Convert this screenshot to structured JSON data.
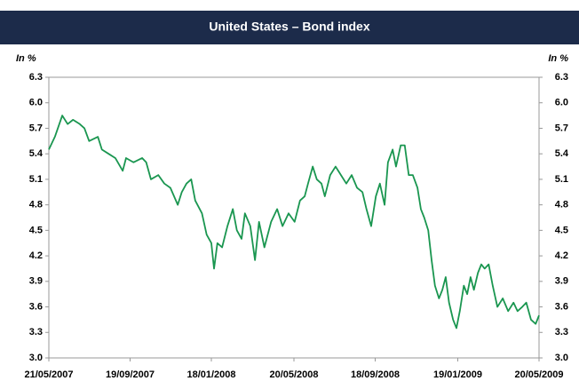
{
  "chart_data": {
    "type": "line",
    "title": "United States – Bond index",
    "y_label": "In %",
    "y2_label": "In %",
    "xlim": [
      "2007-05-21",
      "2009-05-20"
    ],
    "xticks": [
      {
        "value": "2007-05-21",
        "label": "21/05/2007"
      },
      {
        "value": "2007-09-19",
        "label": "19/09/2007"
      },
      {
        "value": "2008-01-18",
        "label": "18/01/2008"
      },
      {
        "value": "2008-05-20",
        "label": "20/05/2008"
      },
      {
        "value": "2008-09-18",
        "label": "18/09/2008"
      },
      {
        "value": "2009-01-19",
        "label": "19/01/2009"
      },
      {
        "value": "2009-05-20",
        "label": "20/05/2009"
      }
    ],
    "ylim": [
      3.0,
      6.3
    ],
    "yticks": [
      {
        "value": 3,
        "label": "3.0"
      },
      3.3,
      3.6,
      3.9,
      4.2,
      4.5,
      4.8,
      5.1,
      5.4,
      5.7,
      {
        "value": 6,
        "label": "6.0"
      },
      6.3
    ],
    "y2lim": [
      3.0,
      6.3
    ],
    "y2ticks": [
      {
        "value": 3,
        "label": "3.0"
      },
      3.3,
      3.6,
      3.9,
      4.2,
      4.5,
      4.8,
      5.1,
      5.4,
      5.7,
      {
        "value": 6,
        "label": "6.0"
      },
      6.3
    ],
    "x": [
      "2007-05-21",
      "2007-05-30",
      "2007-06-10",
      "2007-06-18",
      "2007-06-26",
      "2007-07-06",
      "2007-07-13",
      "2007-07-20",
      "2007-08-02",
      "2007-08-08",
      "2007-08-18",
      "2007-08-28",
      "2007-09-08",
      "2007-09-13",
      "2007-09-24",
      "2007-10-07",
      "2007-10-13",
      "2007-10-20",
      "2007-10-31",
      "2007-11-09",
      "2007-11-18",
      "2007-11-29",
      "2007-12-05",
      "2007-12-12",
      "2007-12-19",
      "2007-12-25",
      "2008-01-04",
      "2008-01-11",
      "2008-01-18",
      "2008-01-22",
      "2008-01-27",
      "2008-02-03",
      "2008-02-11",
      "2008-02-19",
      "2008-02-25",
      "2008-03-03",
      "2008-03-08",
      "2008-03-16",
      "2008-03-23",
      "2008-03-29",
      "2008-04-06",
      "2008-04-16",
      "2008-04-25",
      "2008-05-03",
      "2008-05-12",
      "2008-05-21",
      "2008-05-29",
      "2008-06-05",
      "2008-06-10",
      "2008-06-17",
      "2008-06-23",
      "2008-06-30",
      "2008-07-05",
      "2008-07-13",
      "2008-07-21",
      "2008-07-29",
      "2008-08-06",
      "2008-08-14",
      "2008-08-22",
      "2008-08-30",
      "2008-09-05",
      "2008-09-12",
      "2008-09-19",
      "2008-09-25",
      "2008-10-02",
      "2008-10-07",
      "2008-10-14",
      "2008-10-19",
      "2008-10-26",
      "2008-11-01",
      "2008-11-07",
      "2008-11-13",
      "2008-11-20",
      "2008-11-25",
      "2008-11-30",
      "2008-12-06",
      "2008-12-11",
      "2008-12-16",
      "2008-12-22",
      "2008-12-27",
      "2009-01-01",
      "2009-01-06",
      "2009-01-12",
      "2009-01-17",
      "2009-01-22",
      "2009-01-28",
      "2009-02-02",
      "2009-02-07",
      "2009-02-12",
      "2009-02-18",
      "2009-02-23",
      "2009-02-28",
      "2009-03-06",
      "2009-03-12",
      "2009-03-19",
      "2009-03-27",
      "2009-04-04",
      "2009-04-12",
      "2009-04-18",
      "2009-04-25",
      "2009-05-01",
      "2009-05-08",
      "2009-05-15",
      "2009-05-20"
    ],
    "series": [
      {
        "name": "Bond index",
        "color": "#1a9650",
        "values": [
          5.45,
          5.6,
          5.85,
          5.75,
          5.8,
          5.75,
          5.7,
          5.55,
          5.6,
          5.45,
          5.4,
          5.35,
          5.2,
          5.35,
          5.3,
          5.35,
          5.3,
          5.1,
          5.15,
          5.05,
          5.0,
          4.8,
          4.95,
          5.05,
          5.1,
          4.85,
          4.7,
          4.45,
          4.35,
          4.05,
          4.35,
          4.3,
          4.55,
          4.75,
          4.5,
          4.4,
          4.7,
          4.55,
          4.15,
          4.6,
          4.3,
          4.6,
          4.75,
          4.55,
          4.7,
          4.6,
          4.85,
          4.9,
          5.05,
          5.25,
          5.1,
          5.05,
          4.9,
          5.15,
          5.25,
          5.15,
          5.05,
          5.15,
          5.0,
          4.95,
          4.75,
          4.55,
          4.9,
          5.05,
          4.8,
          5.3,
          5.45,
          5.25,
          5.5,
          5.5,
          5.15,
          5.15,
          5.0,
          4.75,
          4.65,
          4.5,
          4.15,
          3.85,
          3.7,
          3.8,
          3.95,
          3.65,
          3.45,
          3.35,
          3.55,
          3.85,
          3.75,
          3.95,
          3.8,
          4.0,
          4.1,
          4.05,
          4.1,
          3.85,
          3.6,
          3.7,
          3.55,
          3.65,
          3.55,
          3.6,
          3.65,
          3.45,
          3.4,
          3.5
        ]
      }
    ]
  }
}
